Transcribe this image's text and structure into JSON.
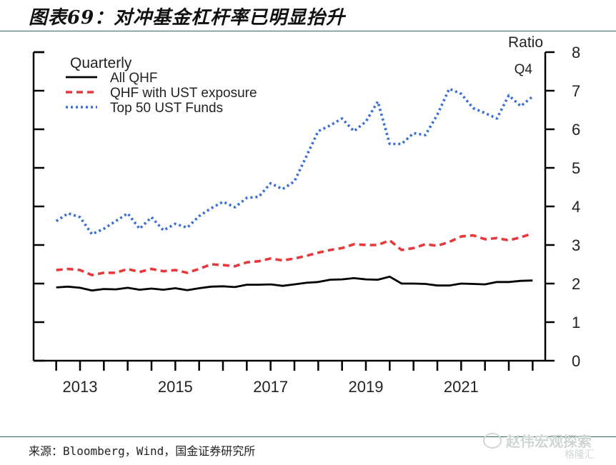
{
  "title": "图表69：对冲基金杠杆率已明显抬升",
  "source": "来源：Bloomberg，Wind，国金证券研究所",
  "watermark": {
    "text": "赵伟宏观探索",
    "sub": "格隆汇"
  },
  "colors": {
    "all_qhf": "#000000",
    "qhf_ust": "#e8383c",
    "top50": "#3b6fd4",
    "axis": "#000000",
    "rule": "#2f6b5e"
  },
  "chart_data": {
    "type": "line",
    "ylabel": "Ratio",
    "corner_label": "Q4",
    "legend_title": "Quarterly",
    "legend_position": "top-left",
    "y_axis_side": "right",
    "ylim": [
      0,
      8
    ],
    "yticks": [
      "0",
      "1",
      "2",
      "3",
      "4",
      "5",
      "6",
      "7",
      "8"
    ],
    "xlim": [
      2012.5,
      2023.0
    ],
    "xticks": [
      "2013",
      "2015",
      "2017",
      "2019",
      "2021"
    ],
    "grid": false,
    "series": [
      {
        "name": "All QHF",
        "style": "solid",
        "x": [
          2012.75,
          2013.0,
          2013.25,
          2013.5,
          2013.75,
          2014.0,
          2014.25,
          2014.5,
          2014.75,
          2015.0,
          2015.25,
          2015.5,
          2015.75,
          2016.0,
          2016.25,
          2016.5,
          2016.75,
          2017.0,
          2017.25,
          2017.5,
          2017.75,
          2018.0,
          2018.25,
          2018.5,
          2018.75,
          2019.0,
          2019.25,
          2019.5,
          2019.75,
          2020.0,
          2020.25,
          2020.5,
          2020.75,
          2021.0,
          2021.25,
          2021.5,
          2021.75,
          2022.0,
          2022.25,
          2022.5,
          2022.75
        ],
        "y": [
          1.9,
          1.92,
          1.89,
          1.82,
          1.86,
          1.85,
          1.89,
          1.84,
          1.87,
          1.84,
          1.88,
          1.83,
          1.88,
          1.92,
          1.93,
          1.91,
          1.97,
          1.97,
          1.98,
          1.94,
          1.98,
          2.02,
          2.04,
          2.1,
          2.11,
          2.14,
          2.11,
          2.1,
          2.18,
          2.0,
          2.0,
          1.99,
          1.95,
          1.95,
          2.0,
          1.99,
          1.98,
          2.04,
          2.04,
          2.07,
          2.08
        ]
      },
      {
        "name": "QHF with UST exposure",
        "style": "dashed",
        "x": [
          2012.75,
          2013.0,
          2013.25,
          2013.5,
          2013.75,
          2014.0,
          2014.25,
          2014.5,
          2014.75,
          2015.0,
          2015.25,
          2015.5,
          2015.75,
          2016.0,
          2016.25,
          2016.5,
          2016.75,
          2017.0,
          2017.25,
          2017.5,
          2017.75,
          2018.0,
          2018.25,
          2018.5,
          2018.75,
          2019.0,
          2019.25,
          2019.5,
          2019.75,
          2020.0,
          2020.25,
          2020.5,
          2020.75,
          2021.0,
          2021.25,
          2021.5,
          2021.75,
          2022.0,
          2022.25,
          2022.5,
          2022.75
        ],
        "y": [
          2.35,
          2.38,
          2.35,
          2.22,
          2.28,
          2.28,
          2.38,
          2.3,
          2.38,
          2.32,
          2.35,
          2.28,
          2.38,
          2.5,
          2.48,
          2.45,
          2.55,
          2.58,
          2.65,
          2.6,
          2.65,
          2.72,
          2.8,
          2.87,
          2.92,
          3.02,
          3.0,
          3.0,
          3.12,
          2.87,
          2.92,
          3.02,
          2.98,
          3.08,
          3.22,
          3.25,
          3.15,
          3.18,
          3.12,
          3.2,
          3.3
        ]
      },
      {
        "name": "Top 50 UST Funds",
        "style": "dotted",
        "x": [
          2012.75,
          2013.0,
          2013.25,
          2013.5,
          2013.75,
          2014.0,
          2014.25,
          2014.5,
          2014.75,
          2015.0,
          2015.25,
          2015.5,
          2015.75,
          2016.0,
          2016.25,
          2016.5,
          2016.75,
          2017.0,
          2017.25,
          2017.5,
          2017.75,
          2018.0,
          2018.25,
          2018.5,
          2018.75,
          2019.0,
          2019.25,
          2019.5,
          2019.75,
          2020.0,
          2020.25,
          2020.5,
          2020.75,
          2021.0,
          2021.25,
          2021.5,
          2021.75,
          2022.0,
          2022.25,
          2022.5,
          2022.75
        ],
        "y": [
          3.62,
          3.82,
          3.72,
          3.28,
          3.42,
          3.62,
          3.82,
          3.42,
          3.72,
          3.38,
          3.55,
          3.45,
          3.75,
          3.95,
          4.12,
          3.98,
          4.22,
          4.25,
          4.6,
          4.45,
          4.65,
          5.3,
          5.95,
          6.1,
          6.28,
          5.95,
          6.2,
          6.72,
          5.62,
          5.62,
          5.9,
          5.85,
          6.38,
          7.05,
          6.92,
          6.55,
          6.42,
          6.28,
          6.88,
          6.6,
          6.85
        ]
      }
    ]
  }
}
